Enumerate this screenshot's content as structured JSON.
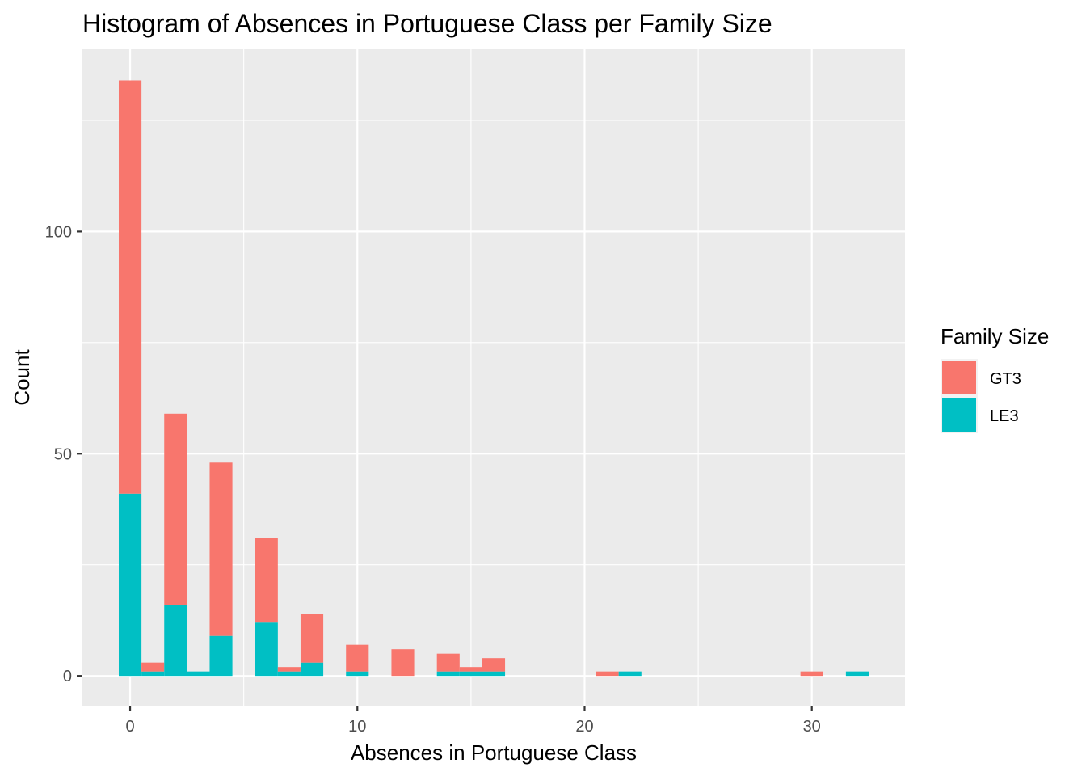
{
  "chart_data": {
    "type": "bar",
    "stacked": true,
    "histogram": true,
    "title": "Histogram of Absences in Portuguese Class per Family Size",
    "xlabel": "Absences in Portuguese Class",
    "ylabel": "Count",
    "xlim": [
      -2.1,
      34.1
    ],
    "ylim": [
      -6.7,
      141
    ],
    "x_ticks": [
      0,
      10,
      20,
      30
    ],
    "y_ticks": [
      0,
      50,
      100
    ],
    "grid": true,
    "legend": {
      "title": "Family Size",
      "position": "right"
    },
    "bin_width": 1,
    "bins": [
      0,
      1,
      2,
      3,
      4,
      6,
      7,
      8,
      10,
      12,
      14,
      15,
      16,
      21,
      22,
      30,
      32
    ],
    "series": [
      {
        "name": "GT3",
        "color": "#F8766D",
        "values": [
          93,
          2,
          43,
          0,
          39,
          19,
          1,
          11,
          6,
          6,
          4,
          1,
          3,
          1,
          0,
          1,
          0
        ]
      },
      {
        "name": "LE3",
        "color": "#00BFC4",
        "values": [
          41,
          1,
          16,
          1,
          9,
          12,
          1,
          3,
          1,
          0,
          1,
          1,
          1,
          0,
          1,
          0,
          1
        ]
      }
    ]
  }
}
